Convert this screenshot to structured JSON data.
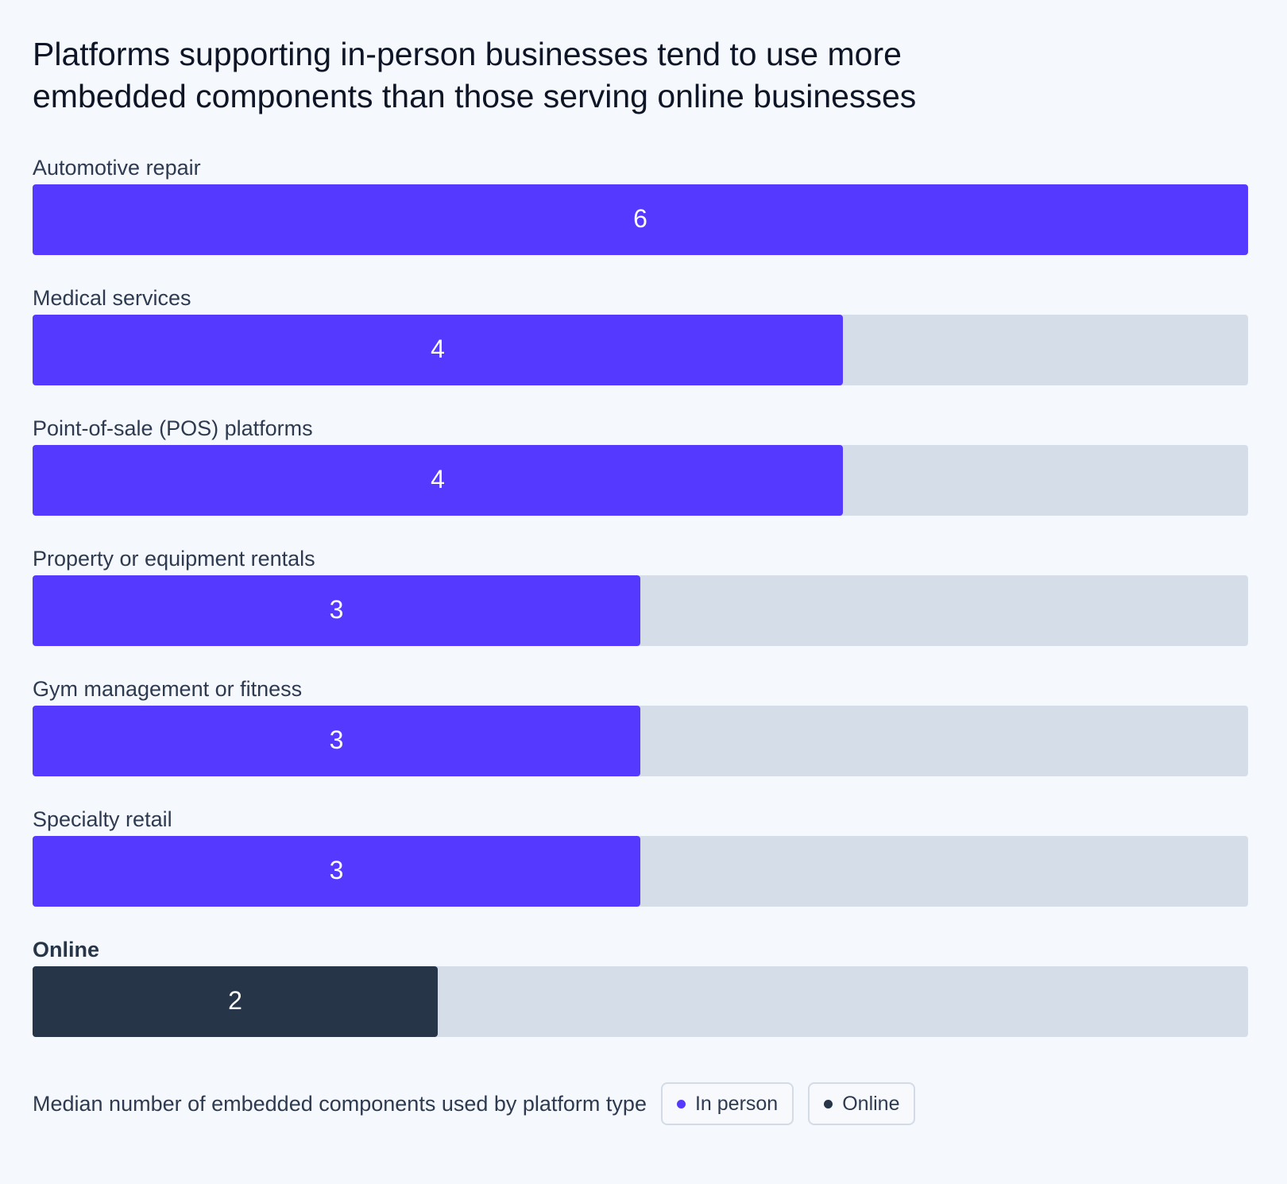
{
  "chart_data": {
    "type": "bar",
    "title": "Platforms supporting in-person businesses tend to use more embedded components than those serving online businesses",
    "categories": [
      "Automotive repair",
      "Medical services",
      "Point-of-sale (POS) platforms",
      "Property or equipment rentals",
      "Gym management or fitness",
      "Specialty retail",
      "Online"
    ],
    "series": [
      {
        "name": "In person",
        "color": "#5639FF",
        "values": [
          6,
          4,
          4,
          3,
          3,
          3,
          null
        ]
      },
      {
        "name": "Online",
        "color": "#263548",
        "values": [
          null,
          null,
          null,
          null,
          null,
          null,
          2
        ]
      }
    ],
    "xlim": [
      0,
      6
    ],
    "caption": "Median number of embedded components used by platform type"
  }
}
